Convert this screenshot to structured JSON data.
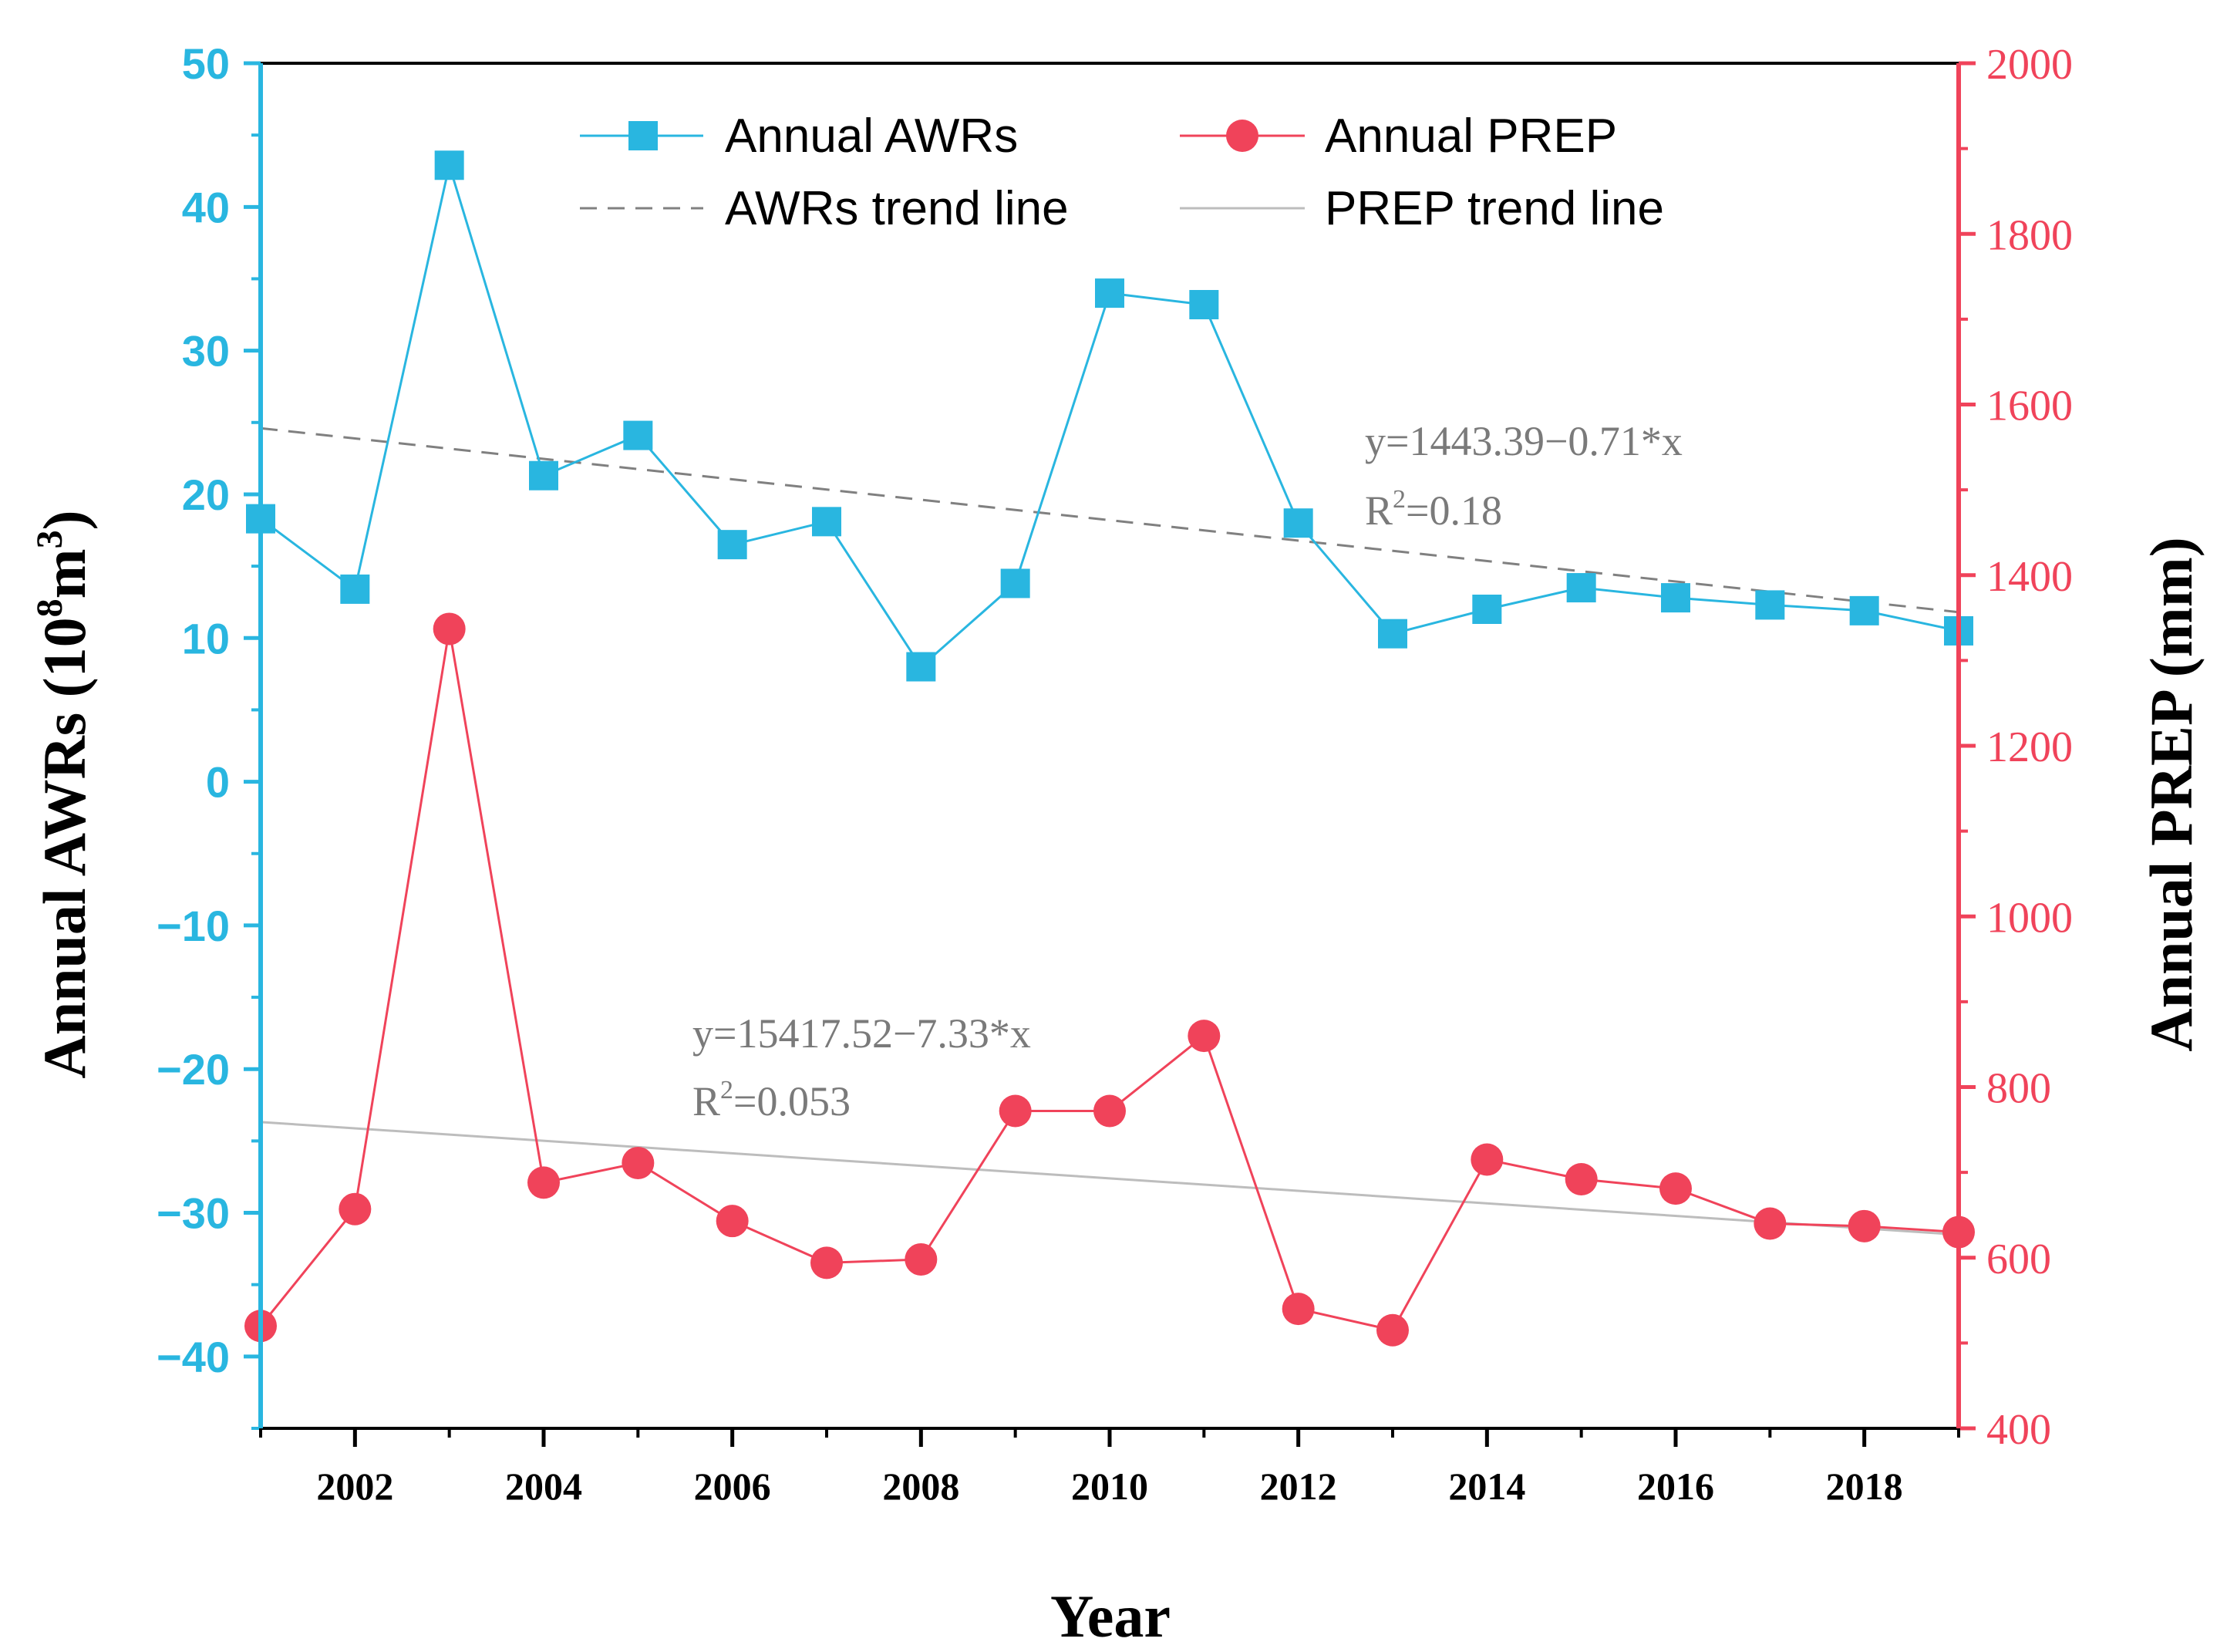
{
  "chart_data": {
    "type": "line",
    "x": [
      2001,
      2002,
      2003,
      2004,
      2005,
      2006,
      2007,
      2008,
      2009,
      2010,
      2011,
      2012,
      2013,
      2014,
      2015,
      2016,
      2017,
      2018,
      2019
    ],
    "x_ticks": [
      "2002",
      "2004",
      "2006",
      "2008",
      "2010",
      "2012",
      "2014",
      "2016",
      "2018"
    ],
    "xlabel": "Year",
    "xlim": [
      2001,
      2019
    ],
    "left_axis": {
      "label_main": "Annual AWRs (10",
      "label_sup1": "8",
      "label_mid": "m",
      "label_sup2": "3",
      "label_end": ")",
      "ylim": [
        -45,
        50
      ],
      "ticks": [
        "50",
        "40",
        "30",
        "20",
        "10",
        "0",
        "-10",
        "-20",
        "-30",
        "-40"
      ],
      "color": "#29b6e0"
    },
    "right_axis": {
      "label": "Annual PREP (mm)",
      "ylim": [
        400,
        2000
      ],
      "ticks": [
        "2000",
        "1800",
        "1600",
        "1400",
        "1200",
        "1000",
        "800",
        "600",
        "400"
      ],
      "color": "#f0435a"
    },
    "series": [
      {
        "name": "Annual AWRs",
        "axis": "left",
        "marker": "square",
        "color": "#29b6e0",
        "values": [
          18.3,
          13.4,
          42.9,
          21.3,
          24.1,
          16.5,
          18.1,
          8.0,
          13.8,
          34.0,
          33.2,
          18.0,
          10.3,
          12.0,
          13.5,
          12.8,
          12.3,
          11.9,
          10.5
        ]
      },
      {
        "name": "Annual PREP",
        "axis": "right",
        "marker": "circle",
        "color": "#f0435a",
        "values": [
          520,
          657,
          1337,
          688,
          711,
          643,
          594,
          598,
          772,
          772,
          860,
          540,
          515,
          715,
          692,
          681,
          640,
          637,
          630
        ]
      }
    ],
    "trend_lines": [
      {
        "name": "AWRs trend line",
        "axis": "left",
        "style": "dashed",
        "color": "#808080",
        "start": [
          2001,
          24.6
        ],
        "end": [
          2019,
          11.8
        ],
        "equation": "y=1443.39−0.71*x",
        "r2_label": "R",
        "r2_sup": "2",
        "r2_value": "=0.18"
      },
      {
        "name": "PREP trend line",
        "axis": "right",
        "style": "solid",
        "color": "#bdbdbd",
        "start": [
          2001,
          759
        ],
        "end": [
          2019,
          627
        ],
        "equation": "y=15417.52−7.33*x",
        "r2_label": "R",
        "r2_sup": "2",
        "r2_value": "=0.053"
      }
    ],
    "legend": {
      "position": "top-center",
      "entries": [
        "Annual AWRs",
        "Annual PREP",
        "AWRs trend line",
        "PREP trend line"
      ]
    }
  }
}
